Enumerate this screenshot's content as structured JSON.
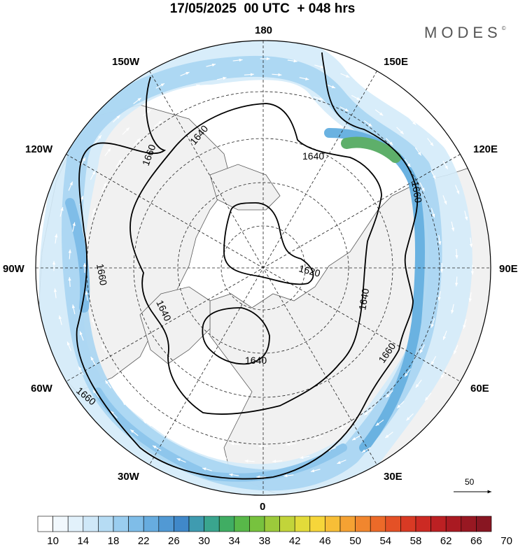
{
  "title": "17/05/2025  00 UTC  + 048 hrs",
  "brand": {
    "name": "MODES",
    "mark": "©"
  },
  "longitude_labels": {
    "lon_180": "180",
    "lon_150w": "150W",
    "lon_150e": "150E",
    "lon_120w": "120W",
    "lon_120e": "120E",
    "lon_90w": "90W",
    "lon_90e": "90E",
    "lon_60w": "60W",
    "lon_60e": "60E",
    "lon_30w": "30W",
    "lon_30e": "30E",
    "lon_0": "0"
  },
  "contours": [
    {
      "label": "1660",
      "kind": "outer"
    },
    {
      "label": "1640",
      "kind": "middle"
    },
    {
      "label": "1620",
      "kind": "polar"
    },
    {
      "label": "1640",
      "kind": "europe-low"
    }
  ],
  "contour_labels": {
    "c1660_nw": "1660",
    "c1640_nw": "1640",
    "c1640_ne": "1640",
    "c1660_e": "1660",
    "c1660_w": "1660",
    "c1640_w": "1640",
    "c1620": "1620",
    "c1640_e": "1640",
    "c1640_s": "1640",
    "c1660_se": "1660",
    "c1660_sw": "1660"
  },
  "wind_reference": {
    "value": "50"
  },
  "colorbar": {
    "labels": [
      "10",
      "14",
      "18",
      "22",
      "26",
      "30",
      "34",
      "38",
      "42",
      "46",
      "50",
      "54",
      "58",
      "62",
      "66",
      "70"
    ],
    "colors": [
      "#ffffff",
      "#f1f8fd",
      "#e2f1fb",
      "#cfe8f8",
      "#b6dcf4",
      "#9acdef",
      "#7fbde8",
      "#67acdf",
      "#5199d4",
      "#4088c9",
      "#3f9bb0",
      "#3aa58e",
      "#40ad63",
      "#58b849",
      "#77c23e",
      "#9cca3b",
      "#c2d43a",
      "#e2db3a",
      "#f6d63a",
      "#f7be37",
      "#f5a233",
      "#f1862e",
      "#ec6a29",
      "#e45126",
      "#d93a24",
      "#cc2a23",
      "#bc2023",
      "#aa1a22",
      "#981822",
      "#881622"
    ]
  }
}
